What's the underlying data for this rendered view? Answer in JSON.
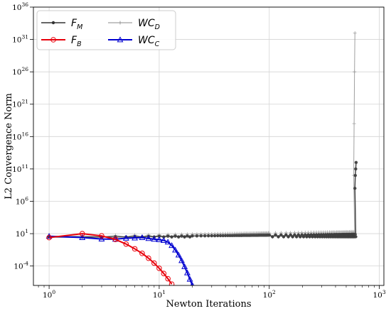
{
  "chart_data": {
    "type": "line",
    "xlabel": "Newton Iterations",
    "ylabel": "L2 Convergence Norm",
    "x_scale": "log",
    "y_scale": "log",
    "xlim": [
      0.72,
      1100
    ],
    "ylim": [
      1e-07,
      1e+36
    ],
    "grid": true,
    "legend_position": "top-left",
    "x_ticks": [
      {
        "value": 1,
        "base": "10",
        "exp": "0"
      },
      {
        "value": 10,
        "base": "10",
        "exp": "1"
      },
      {
        "value": 100,
        "base": "10",
        "exp": "2"
      },
      {
        "value": 1000,
        "base": "10",
        "exp": "3"
      }
    ],
    "y_ticks": [
      {
        "value": 0.0001,
        "base": "10",
        "exp": "-4"
      },
      {
        "value": 10,
        "base": "10",
        "exp": "1"
      },
      {
        "value": 1000000.0,
        "base": "10",
        "exp": "6"
      },
      {
        "value": 100000000000.0,
        "base": "10",
        "exp": "11"
      },
      {
        "value": 1e+16,
        "base": "10",
        "exp": "16"
      },
      {
        "value": 1e+21,
        "base": "10",
        "exp": "21"
      },
      {
        "value": 1e+26,
        "base": "10",
        "exp": "26"
      },
      {
        "value": 1e+31,
        "base": "10",
        "exp": "31"
      },
      {
        "value": 1e+36,
        "base": "10",
        "exp": "36"
      }
    ],
    "series": [
      {
        "name": "F",
        "name_sub": "M",
        "color": "#333333",
        "marker": "dot",
        "line_width": 1.5,
        "opacity": 0.9,
        "description": "oscillates near 1e1 from iteration 1 to about 600, then rises to about 1e12",
        "x_range": [
          1,
          615
        ],
        "plateau_range": [
          3,
          8
        ],
        "spike_x": [
          600,
          605,
          610,
          615
        ],
        "spike_y": [
          100000000.0,
          10000000000.0,
          100000000000.0,
          1000000000000.0
        ]
      },
      {
        "name": "F",
        "name_sub": "B",
        "color": "#e8000b",
        "marker": "circle",
        "line_width": 2,
        "opacity": 1,
        "x": [
          1,
          2,
          3,
          4,
          5,
          6,
          7,
          8,
          9,
          10,
          11,
          12,
          13
        ],
        "y": [
          2.5,
          10,
          4.5,
          1.3,
          0.25,
          0.045,
          0.009,
          0.0016,
          0.00028,
          4.5e-05,
          7e-06,
          1.1e-06,
          1.6e-07
        ]
      },
      {
        "name": "WC",
        "name_sub": "D",
        "color": "#888888",
        "marker": "plus",
        "line_width": 1,
        "opacity": 0.8,
        "description": "oscillates near 1e1 from iteration 1 to about 600, then rises sharply to about 1e32",
        "x_range": [
          1,
          600
        ],
        "plateau_range": [
          3,
          20
        ],
        "spike_x": [
          585,
          590,
          595,
          600
        ],
        "spike_y": [
          10000000000.0,
          1e+18,
          1e+26,
          1e+32
        ]
      },
      {
        "name": "WC",
        "name_sub": "C",
        "color": "#0000d0",
        "marker": "triangle",
        "line_width": 2,
        "opacity": 1,
        "x": [
          1,
          2,
          3,
          4,
          5,
          6,
          7,
          8,
          9,
          10,
          11,
          12,
          13,
          14,
          15,
          16,
          17,
          18,
          19,
          20
        ],
        "y": [
          4,
          2.5,
          1.5,
          1.4,
          2,
          2.2,
          2.5,
          1.8,
          1.4,
          1.2,
          0.9,
          0.5,
          0.15,
          0.03,
          0.005,
          0.0007,
          8e-05,
          9e-06,
          9e-07,
          1.1e-07
        ]
      }
    ]
  }
}
